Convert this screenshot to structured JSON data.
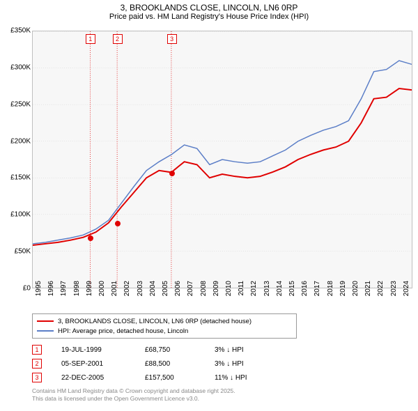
{
  "title_line1": "3, BROOKLANDS CLOSE, LINCOLN, LN6 0RP",
  "title_line2": "Price paid vs. HM Land Registry's House Price Index (HPI)",
  "chart": {
    "type": "line",
    "background_color": "#f7f7f7",
    "border_color": "#bfbfbf",
    "grid_color": "#d0d0d0",
    "xlim": [
      1995,
      2025
    ],
    "ylim": [
      0,
      350000
    ],
    "ytick_step": 50000,
    "yticks": [
      0,
      50000,
      100000,
      150000,
      200000,
      250000,
      300000,
      350000
    ],
    "ytick_labels": [
      "£0",
      "£50K",
      "£100K",
      "£150K",
      "£200K",
      "£250K",
      "£300K",
      "£350K"
    ],
    "xticks": [
      1995,
      1996,
      1997,
      1998,
      1999,
      2000,
      2001,
      2002,
      2003,
      2004,
      2005,
      2006,
      2007,
      2008,
      2009,
      2010,
      2011,
      2012,
      2013,
      2014,
      2015,
      2016,
      2017,
      2018,
      2019,
      2020,
      2021,
      2022,
      2023,
      2024
    ],
    "label_fontsize": 10,
    "series": [
      {
        "name": "price_paid",
        "label": "3, BROOKLANDS CLOSE, LINCOLN, LN6 0RP (detached house)",
        "color": "#e00000",
        "line_width": 2,
        "x": [
          1995,
          1996,
          1997,
          1998,
          1999,
          2000,
          2001,
          2002,
          2003,
          2004,
          2005,
          2005.97,
          2006.5,
          2007,
          2008,
          2009,
          2010,
          2011,
          2012,
          2013,
          2014,
          2015,
          2016,
          2017,
          2018,
          2019,
          2020,
          2021,
          2022,
          2023,
          2024,
          2025
        ],
        "y": [
          58000,
          60000,
          62000,
          65000,
          68750,
          76000,
          88500,
          110000,
          130000,
          150000,
          160000,
          157500,
          165000,
          172000,
          168000,
          150000,
          155000,
          152000,
          150000,
          152000,
          158000,
          165000,
          175000,
          182000,
          188000,
          192000,
          200000,
          225000,
          258000,
          260000,
          272000,
          270000
        ]
      },
      {
        "name": "hpi",
        "label": "HPI: Average price, detached house, Lincoln",
        "color": "#5b7ec7",
        "line_width": 1.5,
        "x": [
          1995,
          1996,
          1997,
          1998,
          1999,
          2000,
          2001,
          2002,
          2003,
          2004,
          2005,
          2006,
          2007,
          2008,
          2009,
          2010,
          2011,
          2012,
          2013,
          2014,
          2015,
          2016,
          2017,
          2018,
          2019,
          2020,
          2021,
          2022,
          2023,
          2024,
          2025
        ],
        "y": [
          60000,
          62000,
          65000,
          68000,
          72000,
          80000,
          92000,
          115000,
          138000,
          160000,
          172000,
          182000,
          195000,
          190000,
          168000,
          175000,
          172000,
          170000,
          172000,
          180000,
          188000,
          200000,
          208000,
          215000,
          220000,
          228000,
          258000,
          295000,
          298000,
          310000,
          305000
        ]
      }
    ],
    "sale_markers": [
      {
        "idx": "1",
        "x": 1999.55,
        "y": 68750
      },
      {
        "idx": "2",
        "x": 2001.68,
        "y": 88500
      },
      {
        "idx": "3",
        "x": 2005.97,
        "y": 157500
      }
    ],
    "vline_color": "#e00000"
  },
  "legend": {
    "rows": [
      {
        "color": "#e00000",
        "width": 2,
        "label": "3, BROOKLANDS CLOSE, LINCOLN, LN6 0RP (detached house)"
      },
      {
        "color": "#5b7ec7",
        "width": 1.5,
        "label": "HPI: Average price, detached house, Lincoln"
      }
    ]
  },
  "sales": [
    {
      "idx": "1",
      "date": "19-JUL-1999",
      "price": "£68,750",
      "delta": "3% ↓ HPI"
    },
    {
      "idx": "2",
      "date": "05-SEP-2001",
      "price": "£88,500",
      "delta": "3% ↓ HPI"
    },
    {
      "idx": "3",
      "date": "22-DEC-2005",
      "price": "£157,500",
      "delta": "11% ↓ HPI"
    }
  ],
  "footer_line1": "Contains HM Land Registry data © Crown copyright and database right 2025.",
  "footer_line2": "This data is licensed under the Open Government Licence v3.0."
}
